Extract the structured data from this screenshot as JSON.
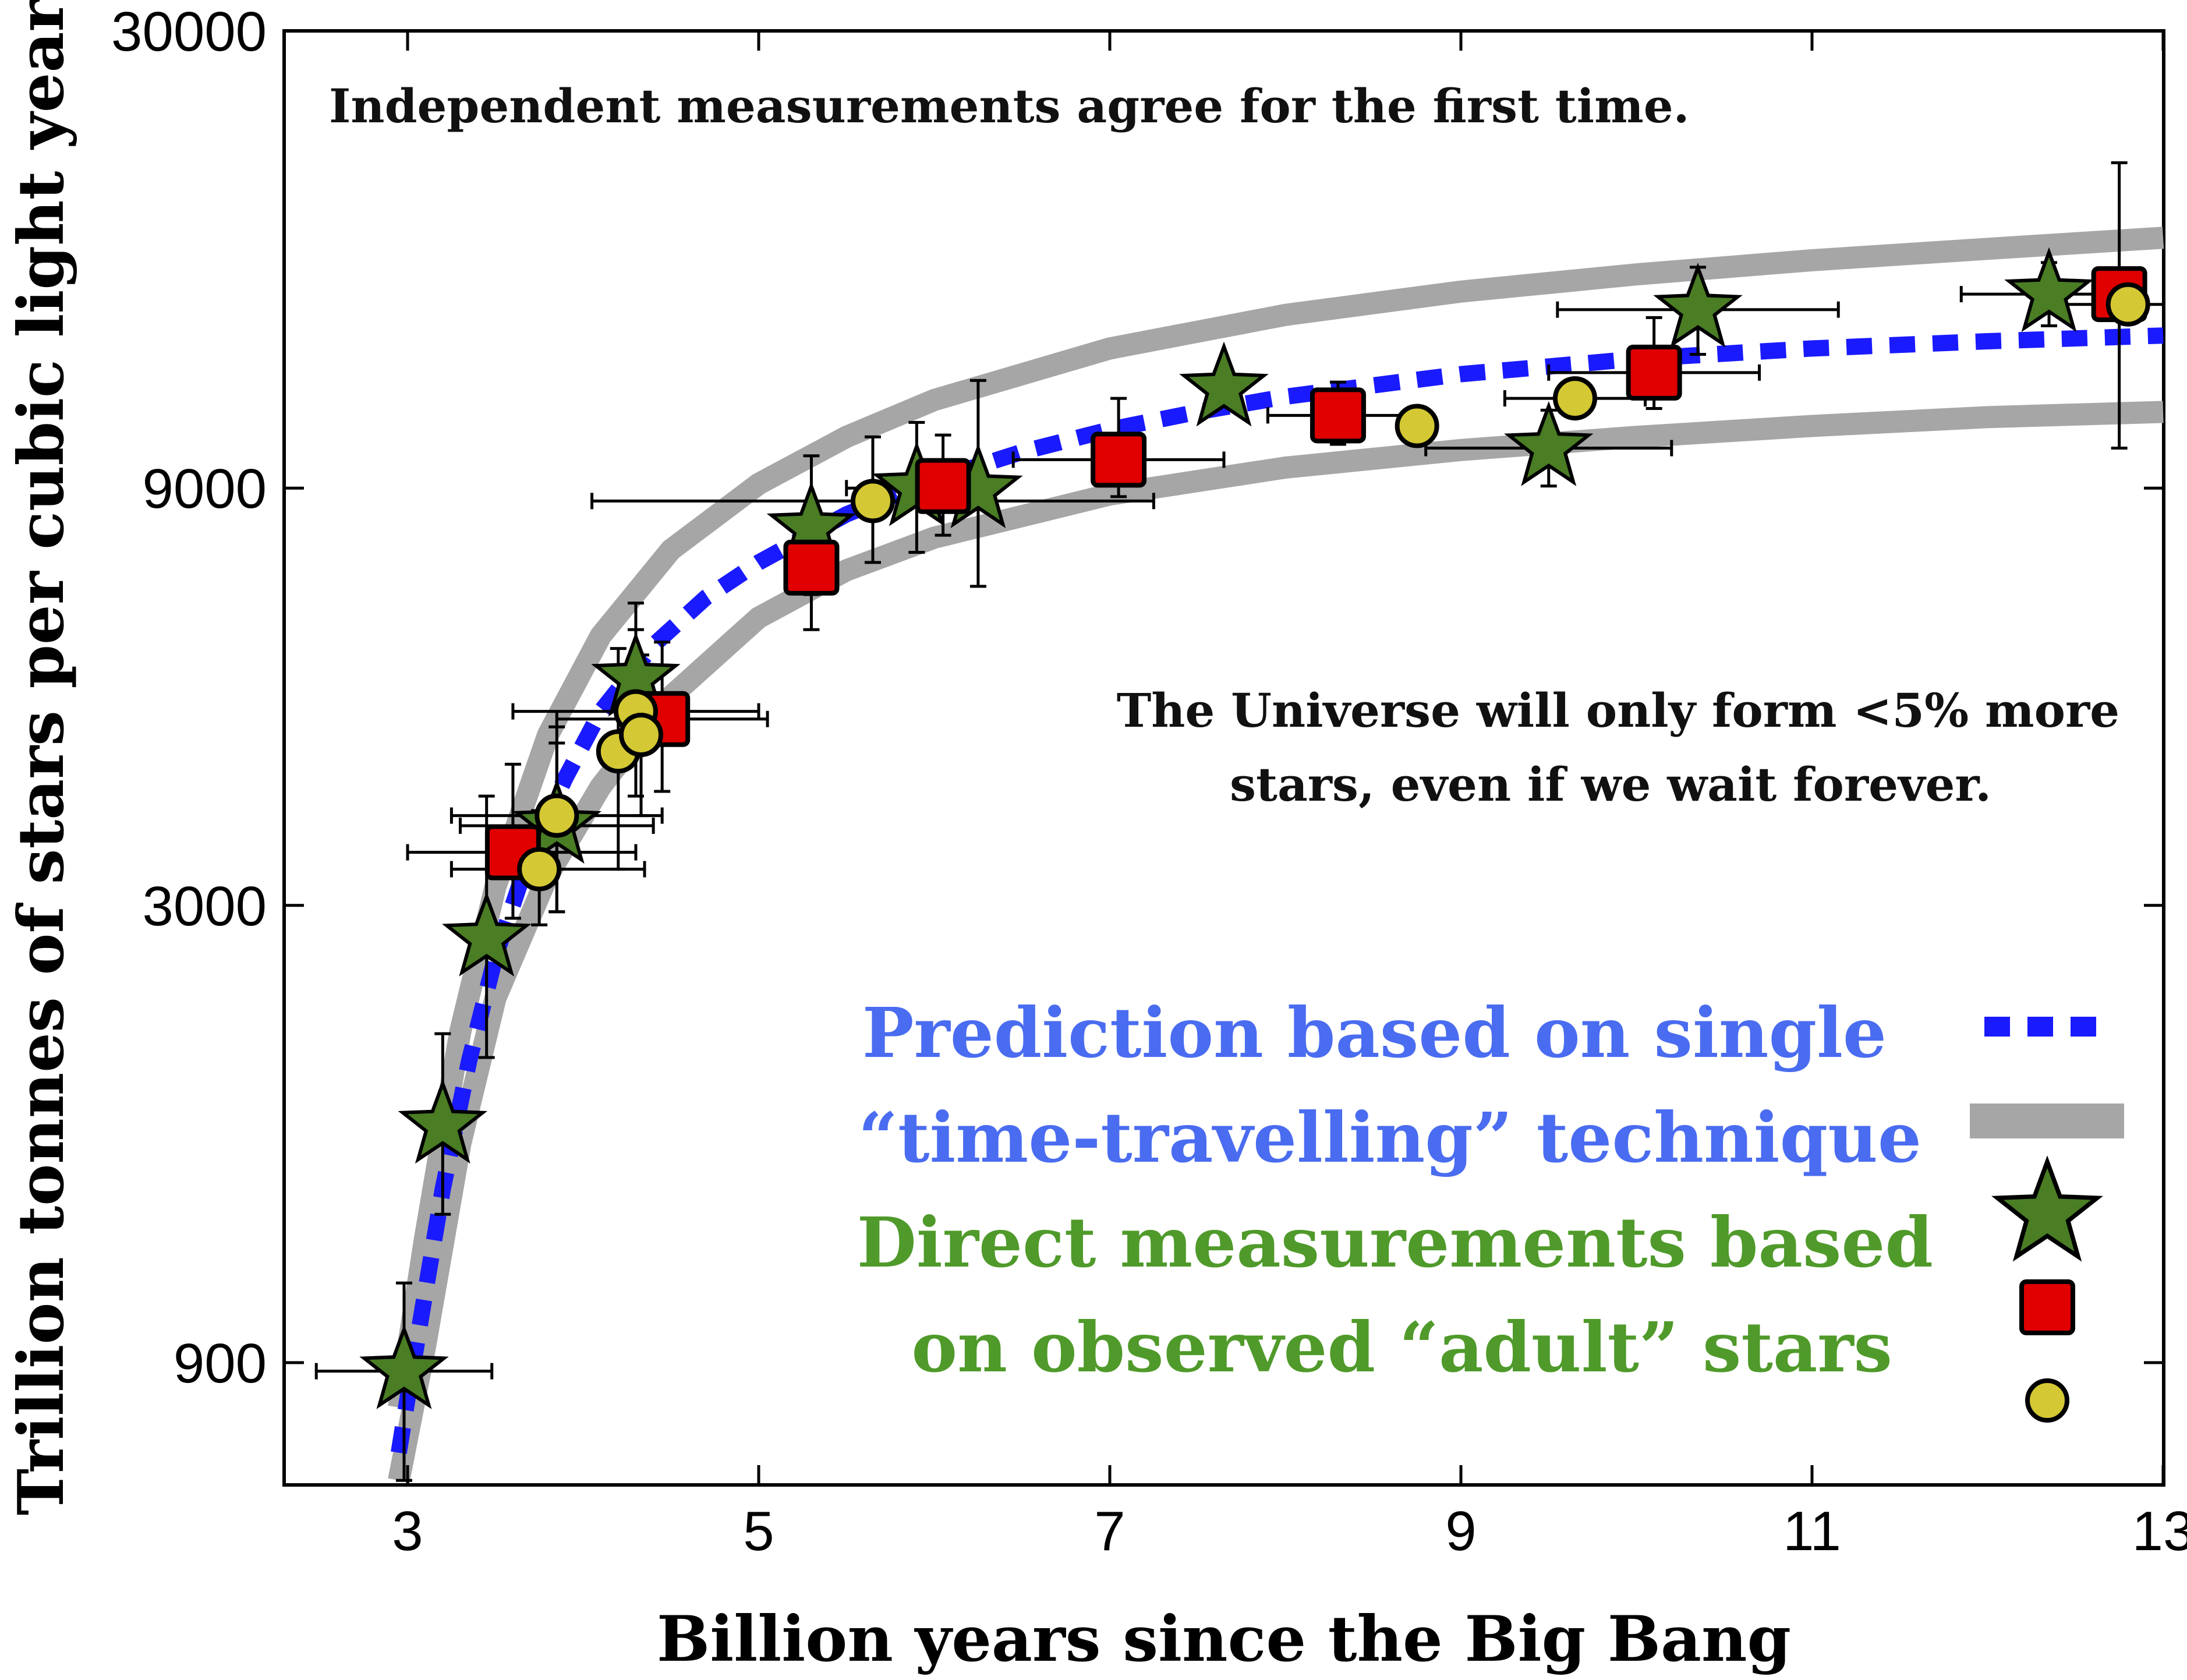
{
  "chart_data": {
    "type": "scatter",
    "xlabel": "Billion years since the Big Bang",
    "ylabel": "Trillion tonnes of stars per cubic light year",
    "xlim": [
      2.3,
      13
    ],
    "ylim": [
      600,
      30000
    ],
    "yscale": "log",
    "xticks": [
      "3",
      "5",
      "7",
      "9",
      "11",
      "13"
    ],
    "yticks": [
      "900",
      "3000",
      "9000",
      "30000"
    ],
    "grid": false,
    "annotations": [
      "Independent measurements agree for the first time.",
      "The Universe will only form <5% more",
      "stars, even if we wait forever."
    ],
    "legend": {
      "placement": "bottom-right",
      "blue_lines": [
        "Prediction based on single",
        "“time-travelling” technique"
      ],
      "green_lines": [
        "Direct measurements based",
        "on observed “adult” stars"
      ]
    },
    "colors": {
      "prediction": "#1a1aff",
      "band": "#a6a6a6",
      "star": "#4a7d24",
      "square": "#e00000",
      "circle": "#d4c834"
    },
    "prediction_curve": {
      "x": [
        2.95,
        3.0,
        3.1,
        3.2,
        3.35,
        3.5,
        3.7,
        3.9,
        4.1,
        4.4,
        4.7,
        5.0,
        5.5,
        6.0,
        6.5,
        7.0,
        7.5,
        8.0,
        9.0,
        10.0,
        11.0,
        12.0,
        13.0
      ],
      "y": [
        710,
        820,
        1080,
        1420,
        1990,
        2620,
        3450,
        4200,
        5000,
        5950,
        6750,
        7400,
        8400,
        9200,
        9900,
        10500,
        11000,
        11450,
        12150,
        12650,
        13000,
        13250,
        13450
      ]
    },
    "band_upper": {
      "x": [
        2.95,
        3.1,
        3.3,
        3.5,
        3.8,
        4.1,
        4.5,
        5.0,
        5.5,
        6.0,
        7.0,
        8.0,
        9.0,
        10.0,
        11.0,
        12.0,
        13.0
      ],
      "y": [
        800,
        1250,
        2150,
        3150,
        4700,
        6100,
        7650,
        9100,
        10300,
        11350,
        13000,
        14200,
        15100,
        15800,
        16400,
        16900,
        17400
      ]
    },
    "band_lower": {
      "x": [
        2.95,
        3.1,
        3.3,
        3.5,
        3.8,
        4.1,
        4.5,
        5.0,
        5.5,
        6.0,
        7.0,
        8.0,
        9.0,
        10.0,
        11.0,
        12.0,
        13.0
      ],
      "y": [
        660,
        940,
        1600,
        2350,
        3250,
        4100,
        5200,
        6400,
        7250,
        7900,
        8850,
        9500,
        9950,
        10300,
        10600,
        10850,
        11000
      ]
    },
    "series": [
      {
        "marker": "star",
        "points": [
          {
            "x": 2.98,
            "y": 880,
            "xerr": [
              0.5,
              0.5
            ],
            "yerr": [
              220,
              230
            ]
          },
          {
            "x": 3.2,
            "y": 1680,
            "xerr": [
              0,
              0
            ],
            "yerr": [
              350,
              460
            ]
          },
          {
            "x": 3.45,
            "y": 2750,
            "xerr": [
              0,
              0
            ],
            "yerr": [
              740,
              1250
            ]
          },
          {
            "x": 3.85,
            "y": 3700,
            "xerr": [
              0.55,
              0.55
            ],
            "yerr": [
              750,
              900
            ]
          },
          {
            "x": 4.3,
            "y": 5450,
            "xerr": [
              0,
              0
            ],
            "yerr": [
              1000,
              1200
            ]
          },
          {
            "x": 5.3,
            "y": 8100,
            "xerr": [
              0,
              0
            ],
            "yerr": [
              1300,
              1700
            ]
          },
          {
            "x": 5.9,
            "y": 9000,
            "xerr": [
              0.4,
              0.4
            ],
            "yerr": [
              1400,
              1700
            ]
          },
          {
            "x": 6.25,
            "y": 8950,
            "xerr": [
              0,
              0
            ],
            "yerr": [
              2000,
              3000
            ]
          },
          {
            "x": 7.65,
            "y": 11700,
            "xerr": [
              0,
              0
            ],
            "yerr": [
              0,
              0
            ]
          },
          {
            "x": 9.5,
            "y": 10000,
            "xerr": [
              0.7,
              0.7
            ],
            "yerr": [
              950,
              1050
            ]
          },
          {
            "x": 10.35,
            "y": 14400,
            "xerr": [
              0.8,
              0.8
            ],
            "yerr": [
              1600,
              1700
            ]
          },
          {
            "x": 12.35,
            "y": 15000,
            "xerr": [
              0.5,
              0.5
            ],
            "yerr": [
              1200,
              1300
            ]
          }
        ]
      },
      {
        "marker": "square",
        "points": [
          {
            "x": 3.6,
            "y": 3450,
            "xerr": [
              0.6,
              0.7
            ],
            "yerr": [
              550,
              900
            ]
          },
          {
            "x": 4.45,
            "y": 4900,
            "xerr": [
              0.6,
              0.6
            ],
            "yerr": [
              850,
              1100
            ]
          },
          {
            "x": 5.3,
            "y": 7300,
            "xerr": [
              0,
              0
            ],
            "yerr": [
              1100,
              1300
            ]
          },
          {
            "x": 6.05,
            "y": 9050,
            "xerr": [
              0,
              0
            ],
            "yerr": [
              1100,
              1300
            ]
          },
          {
            "x": 7.05,
            "y": 9700,
            "xerr": [
              0.6,
              0.6
            ],
            "yerr": [
              900,
              1700
            ]
          },
          {
            "x": 8.3,
            "y": 10900,
            "xerr": [
              0.4,
              0.4
            ],
            "yerr": [
              800,
              1000
            ]
          },
          {
            "x": 10.1,
            "y": 12200,
            "xerr": [
              0.6,
              0.6
            ],
            "yerr": [
              1100,
              1900
            ]
          },
          {
            "x": 12.75,
            "y": 15000,
            "xerr": [
              0,
              0
            ],
            "yerr": [
              5000,
              6200
            ]
          }
        ]
      },
      {
        "marker": "circle",
        "points": [
          {
            "x": 3.75,
            "y": 3300,
            "xerr": [
              0.5,
              0.6
            ],
            "yerr": [
              450,
              550
            ]
          },
          {
            "x": 3.85,
            "y": 3800,
            "xerr": [
              0.6,
              0.6
            ],
            "yerr": [
              850,
              1000
            ]
          },
          {
            "x": 4.2,
            "y": 4500,
            "xerr": [
              0,
              0
            ],
            "yerr": [
              1200,
              1400
            ]
          },
          {
            "x": 4.3,
            "y": 5000,
            "xerr": [
              0.7,
              0.7
            ],
            "yerr": [
              1000,
              1200
            ]
          },
          {
            "x": 4.33,
            "y": 4700,
            "xerr": [
              0,
              0
            ],
            "yerr": [
              900,
              1100
            ]
          },
          {
            "x": 5.65,
            "y": 8700,
            "xerr": [
              1.6,
              1.6
            ],
            "yerr": [
              1300,
              1600
            ]
          },
          {
            "x": 8.75,
            "y": 10600,
            "xerr": [
              0,
              0
            ],
            "yerr": [
              0,
              0
            ]
          },
          {
            "x": 9.65,
            "y": 11400,
            "xerr": [
              0.4,
              0.4
            ],
            "yerr": [
              0,
              0
            ]
          },
          {
            "x": 12.8,
            "y": 14600,
            "xerr": [
              0.5,
              0.5
            ],
            "yerr": [
              0,
              0
            ]
          }
        ]
      }
    ]
  }
}
